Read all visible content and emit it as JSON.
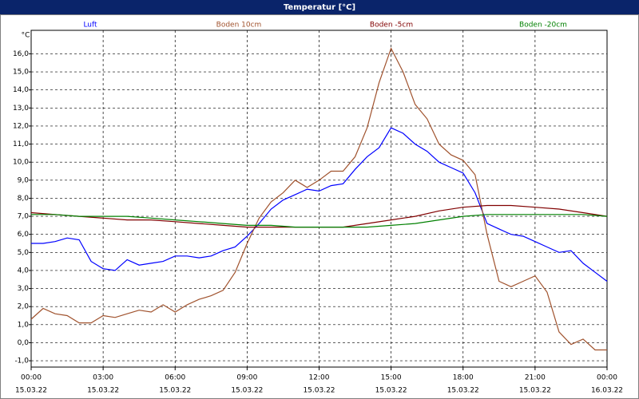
{
  "chart_data": {
    "type": "line",
    "title": "Temperatur [°C]",
    "y_unit": "°C",
    "xlim": [
      0,
      24
    ],
    "ylim": [
      -1.35,
      17.3
    ],
    "grid": true,
    "xticks": [
      {
        "value": 0,
        "label": "00:00",
        "sublabel": "15.03.22"
      },
      {
        "value": 3,
        "label": "03:00",
        "sublabel": "15.03.22"
      },
      {
        "value": 6,
        "label": "06:00",
        "sublabel": "15.03.22"
      },
      {
        "value": 9,
        "label": "09:00",
        "sublabel": "15.03.22"
      },
      {
        "value": 12,
        "label": "12:00",
        "sublabel": "15.03.22"
      },
      {
        "value": 15,
        "label": "15:00",
        "sublabel": "15.03.22"
      },
      {
        "value": 18,
        "label": "18:00",
        "sublabel": "15.03.22"
      },
      {
        "value": 21,
        "label": "21:00",
        "sublabel": "15.03.22"
      },
      {
        "value": 24,
        "label": "00:00",
        "sublabel": "16.03.22"
      }
    ],
    "yticks": [
      {
        "value": -1,
        "label": "-1,0"
      },
      {
        "value": 0,
        "label": "0,0"
      },
      {
        "value": 1,
        "label": "1,0"
      },
      {
        "value": 2,
        "label": "2,0"
      },
      {
        "value": 3,
        "label": "3,0"
      },
      {
        "value": 4,
        "label": "4,0"
      },
      {
        "value": 5,
        "label": "5,0"
      },
      {
        "value": 6,
        "label": "6,0"
      },
      {
        "value": 7,
        "label": "7,0"
      },
      {
        "value": 8,
        "label": "8,0"
      },
      {
        "value": 9,
        "label": "9,0"
      },
      {
        "value": 10,
        "label": "10,0"
      },
      {
        "value": 11,
        "label": "11,0"
      },
      {
        "value": 12,
        "label": "12,0"
      },
      {
        "value": 13,
        "label": "13,0"
      },
      {
        "value": 14,
        "label": "14,0"
      },
      {
        "value": 15,
        "label": "15,0"
      },
      {
        "value": 16,
        "label": "16,0"
      }
    ],
    "series": [
      {
        "name": "Luft",
        "color": "#0000ff",
        "x": [
          0,
          0.5,
          1,
          1.5,
          2,
          2.5,
          3,
          3.5,
          4,
          4.5,
          5,
          5.5,
          6,
          6.5,
          7,
          7.5,
          8,
          8.5,
          9,
          9.5,
          10,
          10.5,
          11,
          11.5,
          12,
          12.5,
          13,
          13.5,
          14,
          14.5,
          15,
          15.5,
          16,
          16.5,
          17,
          17.5,
          18,
          18.5,
          19,
          19.5,
          20,
          20.5,
          21,
          21.5,
          22,
          22.5,
          23,
          23.5,
          24
        ],
        "values": [
          5.5,
          5.5,
          5.6,
          5.8,
          5.7,
          4.5,
          4.1,
          4.0,
          4.6,
          4.3,
          4.4,
          4.5,
          4.8,
          4.8,
          4.7,
          4.8,
          5.1,
          5.3,
          5.9,
          6.6,
          7.4,
          7.9,
          8.2,
          8.5,
          8.4,
          8.7,
          8.8,
          9.6,
          10.3,
          10.8,
          11.9,
          11.6,
          11.0,
          10.6,
          10.0,
          9.7,
          9.4,
          8.3,
          6.6,
          6.3,
          6.0,
          5.9,
          5.6,
          5.3,
          5.0,
          5.1,
          4.4,
          3.9,
          3.4
        ]
      },
      {
        "name": "Boden 10cm",
        "color": "#a0522d",
        "x": [
          0,
          0.5,
          1,
          1.5,
          2,
          2.5,
          3,
          3.5,
          4,
          4.5,
          5,
          5.5,
          6,
          6.5,
          7,
          7.5,
          8,
          8.5,
          9,
          9.5,
          10,
          10.5,
          11,
          11.5,
          12,
          12.5,
          13,
          13.5,
          14,
          14.5,
          15,
          15.5,
          16,
          16.5,
          17,
          17.5,
          18,
          18.5,
          19,
          19.5,
          20,
          20.5,
          21,
          21.5,
          22,
          22.5,
          23,
          23.5,
          24
        ],
        "values": [
          1.3,
          1.9,
          1.6,
          1.5,
          1.1,
          1.1,
          1.5,
          1.4,
          1.6,
          1.8,
          1.7,
          2.1,
          1.7,
          2.1,
          2.4,
          2.6,
          2.9,
          3.9,
          5.5,
          6.9,
          7.8,
          8.3,
          9.0,
          8.6,
          9.0,
          9.5,
          9.5,
          10.3,
          11.9,
          14.4,
          16.3,
          15.0,
          13.2,
          12.4,
          11.0,
          10.4,
          10.1,
          9.3,
          6.0,
          3.4,
          3.1,
          3.4,
          3.7,
          2.8,
          0.6,
          -0.1,
          0.2,
          -0.4,
          -0.4
        ]
      },
      {
        "name": "Boden -5cm",
        "color": "#800000",
        "x": [
          0,
          1,
          2,
          3,
          4,
          5,
          6,
          7,
          8,
          9,
          10,
          11,
          12,
          13,
          14,
          15,
          16,
          17,
          18,
          19,
          20,
          21,
          22,
          23,
          24
        ],
        "values": [
          7.2,
          7.1,
          7.0,
          6.9,
          6.8,
          6.8,
          6.7,
          6.6,
          6.5,
          6.4,
          6.4,
          6.4,
          6.4,
          6.4,
          6.6,
          6.8,
          7.0,
          7.3,
          7.5,
          7.6,
          7.6,
          7.5,
          7.4,
          7.2,
          7.0
        ]
      },
      {
        "name": "Boden -20cm",
        "color": "#008000",
        "x": [
          0,
          1,
          2,
          3,
          4,
          5,
          6,
          7,
          8,
          9,
          10,
          11,
          12,
          13,
          14,
          15,
          16,
          17,
          18,
          19,
          20,
          21,
          22,
          23,
          24
        ],
        "values": [
          7.1,
          7.1,
          7.0,
          7.0,
          7.0,
          6.9,
          6.8,
          6.7,
          6.6,
          6.5,
          6.5,
          6.4,
          6.4,
          6.4,
          6.4,
          6.5,
          6.6,
          6.8,
          7.0,
          7.1,
          7.1,
          7.1,
          7.1,
          7.1,
          7.0
        ]
      }
    ]
  }
}
